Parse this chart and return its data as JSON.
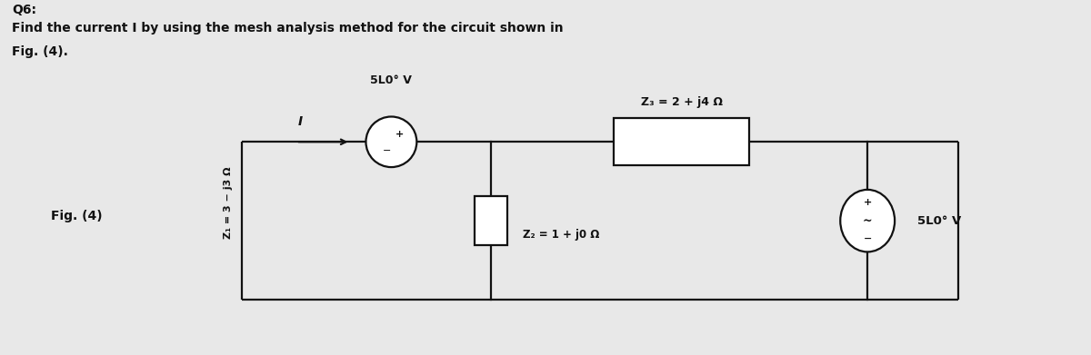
{
  "title_line1": "Q6:",
  "title_line2": "Find the current I by using the mesh analysis method for the circuit shown in",
  "title_line3": "Fig. (4).",
  "fig_label": "Fig. (4)",
  "z1_label": "Z₁ = 3 − j3 Ω",
  "z2_label": "Z₂ = 1 + j0 Ω",
  "z3_label": "Z₃ = 2 + j4 Ω",
  "vs1_label": "5L0° V",
  "vs2_label": "5L0° V",
  "current_label": "I",
  "bg_color": "#e8e8e8",
  "line_color": "#111111",
  "text_color": "#111111",
  "circuit_bg": "#f5f5f5"
}
